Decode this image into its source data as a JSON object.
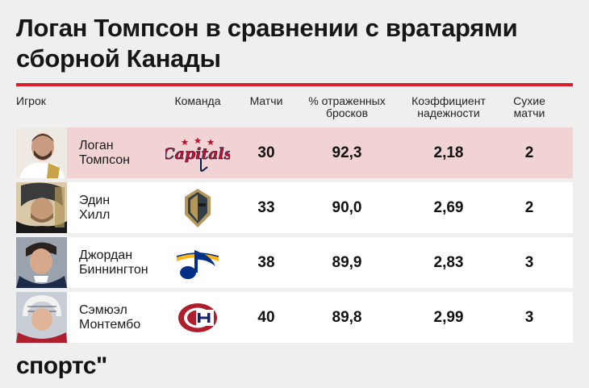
{
  "title": {
    "line1": "Логан Томпсон в сравнении с вратарями",
    "line2": "сборной Канады"
  },
  "headers": {
    "player": "Игрок",
    "team": "Команда",
    "games": "Матчи",
    "save_pct_1": "% отраженных",
    "save_pct_2": "бросков",
    "gaa_1": "Коэффициент",
    "gaa_2": "надежности",
    "shutouts_1": "Сухие",
    "shutouts_2": "матчи"
  },
  "rows": [
    {
      "first": "Логан",
      "last": "Томпсон",
      "team_logo": "capitals-logo",
      "games": "30",
      "save_pct": "92,3",
      "gaa": "2,18",
      "shutouts": "2",
      "logo_text": "Capitals"
    },
    {
      "first": "Эдин",
      "last": "Хилл",
      "team_logo": "golden-knights-logo",
      "games": "33",
      "save_pct": "90,0",
      "gaa": "2,69",
      "shutouts": "2"
    },
    {
      "first": "Джордан",
      "last": "Биннингтон",
      "team_logo": "blues-logo",
      "games": "38",
      "save_pct": "89,9",
      "gaa": "2,83",
      "shutouts": "3"
    },
    {
      "first": "Сэмюэл",
      "last": "Монтембо",
      "team_logo": "canadiens-logo",
      "games": "40",
      "save_pct": "89,8",
      "gaa": "2,99",
      "shutouts": "3"
    }
  ],
  "brand": "спортс\"",
  "colors": {
    "accent": "#d8202a",
    "highlight_row": "#f1d3d3",
    "capitals_red": "#c8102e",
    "capitals_navy": "#041e42",
    "vegas_gold": "#b4975a",
    "blues_blue": "#002f87",
    "canadiens_red": "#af1e2d"
  }
}
